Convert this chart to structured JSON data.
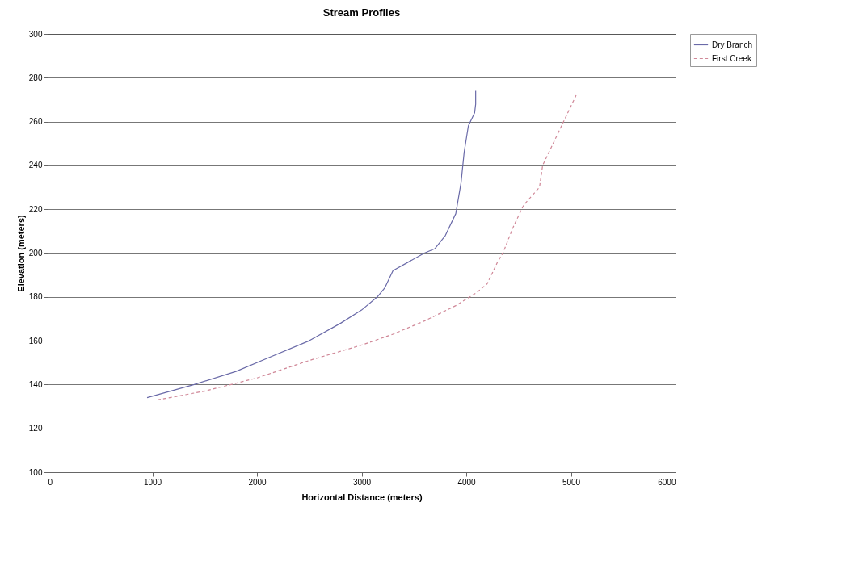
{
  "chart_data": {
    "type": "line",
    "title": "Stream Profiles",
    "xlabel": "Horizontal Distance (meters)",
    "ylabel": "Elevation (meters)",
    "xlim": [
      0,
      6000
    ],
    "xticks": [
      0,
      1000,
      2000,
      3000,
      4000,
      5000,
      6000
    ],
    "ylim": [
      100,
      300
    ],
    "yticks": [
      100,
      120,
      140,
      160,
      180,
      200,
      220,
      240,
      260,
      280,
      300
    ],
    "grid": "y",
    "legend": "right",
    "marker": "none",
    "series": [
      {
        "name": "Dry Branch",
        "color": "#6a6aa8",
        "line_style": "solid",
        "x": [
          950,
          1400,
          1800,
          2100,
          2500,
          2800,
          3000,
          3150,
          3220,
          3300,
          3450,
          3600,
          3700,
          3800,
          3900,
          3950,
          3980,
          4020,
          4080,
          4090,
          4090
        ],
        "values": [
          134,
          140,
          146,
          152,
          160,
          168,
          174,
          180,
          184,
          192,
          196,
          200,
          202,
          208,
          218,
          232,
          246,
          258,
          264,
          268,
          274
        ]
      },
      {
        "name": "First Creek",
        "color": "#d08898",
        "line_style": "dashed",
        "x": [
          1050,
          1500,
          2000,
          2500,
          3000,
          3300,
          3600,
          3900,
          4100,
          4200,
          4300,
          4350,
          4450,
          4550,
          4700,
          4730,
          4850,
          4950,
          5050
        ],
        "values": [
          133,
          137,
          143,
          151,
          158,
          163,
          169,
          176,
          182,
          186,
          196,
          200,
          212,
          222,
          230,
          240,
          252,
          262,
          272
        ]
      }
    ]
  }
}
